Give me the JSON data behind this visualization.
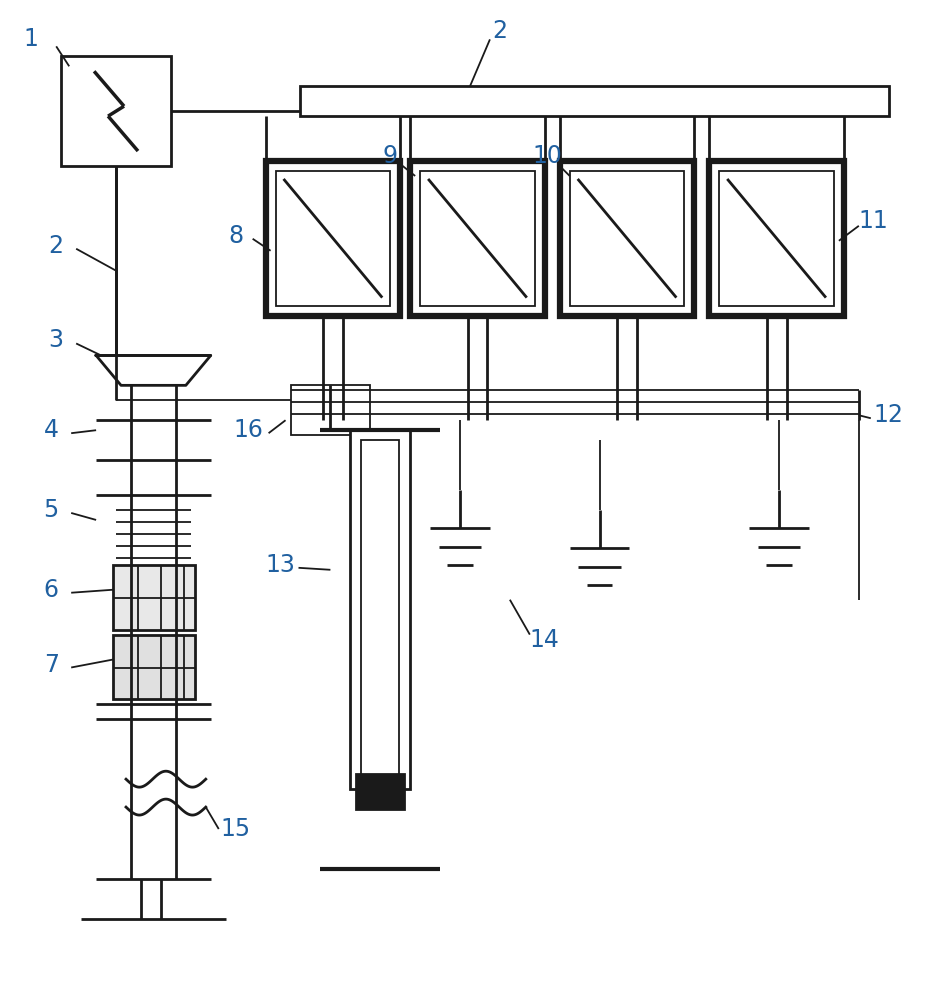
{
  "bg_color": "#ffffff",
  "line_color": "#1a1a1a",
  "label_color": "#2060a0",
  "fig_width": 9.36,
  "fig_height": 10.0,
  "lw_thin": 1.3,
  "lw_med": 2.0,
  "lw_thick": 4.5
}
